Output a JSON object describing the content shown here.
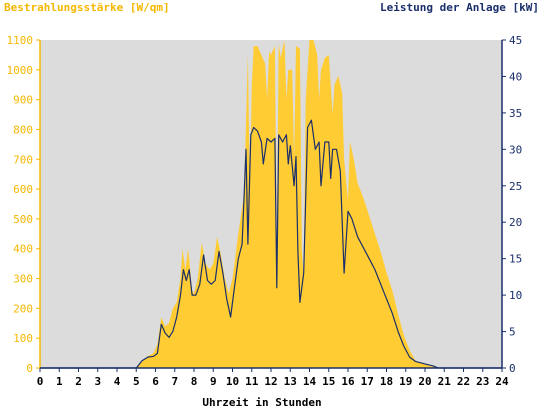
{
  "chart_data": {
    "type": "area",
    "title_left": "Bestrahlungsstärke [W/qm]",
    "title_right": "Leistung der Anlage [kW]",
    "xlabel": "Uhrzeit in Stunden",
    "x_ticks": [
      "0",
      "1",
      "2",
      "3",
      "4",
      "5",
      "6",
      "7",
      "8",
      "9",
      "10",
      "11",
      "12",
      "13",
      "14",
      "15",
      "16",
      "17",
      "18",
      "19",
      "20",
      "21",
      "22",
      "23",
      "24"
    ],
    "y_left_ticks": [
      "0",
      "100",
      "200",
      "300",
      "400",
      "500",
      "600",
      "700",
      "800",
      "900",
      "1000",
      "1100"
    ],
    "y_right_ticks": [
      "0",
      "5",
      "10",
      "15",
      "20",
      "25",
      "30",
      "35",
      "40",
      "45"
    ],
    "xlim": [
      0,
      24
    ],
    "ylim_left": [
      0,
      1100
    ],
    "ylim_right": [
      0,
      45
    ],
    "grid": false,
    "series": [
      {
        "name": "Bestrahlungsstärke [W/qm]",
        "axis": "left",
        "color": "#ffcc33",
        "points": [
          [
            0,
            0
          ],
          [
            5.0,
            0
          ],
          [
            5.3,
            20
          ],
          [
            5.6,
            40
          ],
          [
            5.9,
            50
          ],
          [
            6.1,
            80
          ],
          [
            6.3,
            170
          ],
          [
            6.5,
            140
          ],
          [
            6.7,
            150
          ],
          [
            6.9,
            200
          ],
          [
            7.1,
            220
          ],
          [
            7.3,
            300
          ],
          [
            7.4,
            400
          ],
          [
            7.55,
            330
          ],
          [
            7.7,
            400
          ],
          [
            7.9,
            260
          ],
          [
            8.0,
            250
          ],
          [
            8.2,
            300
          ],
          [
            8.4,
            420
          ],
          [
            8.6,
            350
          ],
          [
            8.8,
            330
          ],
          [
            9.0,
            350
          ],
          [
            9.2,
            440
          ],
          [
            9.4,
            380
          ],
          [
            9.6,
            300
          ],
          [
            9.8,
            250
          ],
          [
            10.0,
            300
          ],
          [
            10.3,
            450
          ],
          [
            10.6,
            580
          ],
          [
            10.8,
            1050
          ],
          [
            10.9,
            600
          ],
          [
            11.0,
            950
          ],
          [
            11.1,
            1080
          ],
          [
            11.3,
            1080
          ],
          [
            11.5,
            1050
          ],
          [
            11.7,
            1020
          ],
          [
            11.8,
            900
          ],
          [
            11.9,
            1060
          ],
          [
            12.0,
            1050
          ],
          [
            12.2,
            1080
          ],
          [
            12.3,
            400
          ],
          [
            12.4,
            1090
          ],
          [
            12.5,
            1040
          ],
          [
            12.7,
            1100
          ],
          [
            12.8,
            900
          ],
          [
            12.9,
            1000
          ],
          [
            13.1,
            1000
          ],
          [
            13.2,
            700
          ],
          [
            13.3,
            1080
          ],
          [
            13.5,
            1070
          ],
          [
            13.6,
            400
          ],
          [
            13.7,
            300
          ],
          [
            13.8,
            900
          ],
          [
            14.0,
            1100
          ],
          [
            14.2,
            1100
          ],
          [
            14.4,
            1050
          ],
          [
            14.5,
            900
          ],
          [
            14.6,
            1000
          ],
          [
            14.8,
            1040
          ],
          [
            15.0,
            1050
          ],
          [
            15.2,
            850
          ],
          [
            15.3,
            950
          ],
          [
            15.5,
            980
          ],
          [
            15.7,
            920
          ],
          [
            15.8,
            700
          ],
          [
            16.0,
            560
          ],
          [
            16.1,
            760
          ],
          [
            16.3,
            700
          ],
          [
            16.5,
            620
          ],
          [
            16.8,
            570
          ],
          [
            17.1,
            510
          ],
          [
            17.4,
            450
          ],
          [
            17.7,
            390
          ],
          [
            18.0,
            320
          ],
          [
            18.3,
            260
          ],
          [
            18.6,
            180
          ],
          [
            18.9,
            110
          ],
          [
            19.2,
            60
          ],
          [
            19.5,
            25
          ],
          [
            19.8,
            15
          ],
          [
            20.1,
            10
          ],
          [
            20.4,
            5
          ],
          [
            20.7,
            0
          ],
          [
            24,
            0
          ]
        ]
      },
      {
        "name": "Leistung der Anlage [kW]",
        "axis": "right",
        "color": "#1a2f6b",
        "points": [
          [
            0,
            0
          ],
          [
            5.0,
            0
          ],
          [
            5.3,
            1
          ],
          [
            5.6,
            1.5
          ],
          [
            5.9,
            1.6
          ],
          [
            6.1,
            2
          ],
          [
            6.3,
            6
          ],
          [
            6.5,
            4.8
          ],
          [
            6.7,
            4.2
          ],
          [
            6.9,
            5
          ],
          [
            7.1,
            7
          ],
          [
            7.3,
            10
          ],
          [
            7.45,
            13.5
          ],
          [
            7.6,
            12
          ],
          [
            7.75,
            13.5
          ],
          [
            7.9,
            10
          ],
          [
            8.1,
            10
          ],
          [
            8.3,
            11.5
          ],
          [
            8.5,
            15.5
          ],
          [
            8.7,
            12
          ],
          [
            8.9,
            11.5
          ],
          [
            9.1,
            12
          ],
          [
            9.3,
            16
          ],
          [
            9.5,
            13
          ],
          [
            9.7,
            9.5
          ],
          [
            9.9,
            7
          ],
          [
            10.1,
            11
          ],
          [
            10.3,
            15
          ],
          [
            10.5,
            17
          ],
          [
            10.7,
            30
          ],
          [
            10.8,
            17
          ],
          [
            10.95,
            32
          ],
          [
            11.1,
            33
          ],
          [
            11.3,
            32.5
          ],
          [
            11.5,
            31
          ],
          [
            11.6,
            28
          ],
          [
            11.8,
            31.5
          ],
          [
            12.0,
            31
          ],
          [
            12.2,
            31.5
          ],
          [
            12.3,
            11
          ],
          [
            12.4,
            32
          ],
          [
            12.6,
            31
          ],
          [
            12.8,
            32
          ],
          [
            12.9,
            28
          ],
          [
            13.0,
            30.5
          ],
          [
            13.2,
            25
          ],
          [
            13.3,
            29
          ],
          [
            13.4,
            16
          ],
          [
            13.5,
            9
          ],
          [
            13.7,
            13
          ],
          [
            13.9,
            33
          ],
          [
            14.1,
            34
          ],
          [
            14.3,
            30
          ],
          [
            14.5,
            31
          ],
          [
            14.6,
            25
          ],
          [
            14.8,
            31
          ],
          [
            15.0,
            31
          ],
          [
            15.1,
            26
          ],
          [
            15.2,
            30
          ],
          [
            15.4,
            30
          ],
          [
            15.6,
            27
          ],
          [
            15.8,
            13
          ],
          [
            16.0,
            21.5
          ],
          [
            16.2,
            20.5
          ],
          [
            16.5,
            18
          ],
          [
            16.8,
            16.5
          ],
          [
            17.1,
            15
          ],
          [
            17.4,
            13.5
          ],
          [
            17.7,
            11.5
          ],
          [
            18.0,
            9.5
          ],
          [
            18.3,
            7.5
          ],
          [
            18.6,
            5
          ],
          [
            18.9,
            3
          ],
          [
            19.2,
            1.5
          ],
          [
            19.5,
            0.9
          ],
          [
            19.8,
            0.7
          ],
          [
            20.1,
            0.5
          ],
          [
            20.4,
            0.3
          ],
          [
            20.7,
            0
          ],
          [
            24,
            0
          ]
        ]
      }
    ]
  },
  "colors": {
    "plot_background": "#dcdcdc",
    "left_axis_color": "#f5b800",
    "right_axis_color": "#1a2f6b",
    "frame_color": "#1a2f6b",
    "area_fill": "#ffcc33",
    "line_stroke": "#1a2f6b"
  }
}
